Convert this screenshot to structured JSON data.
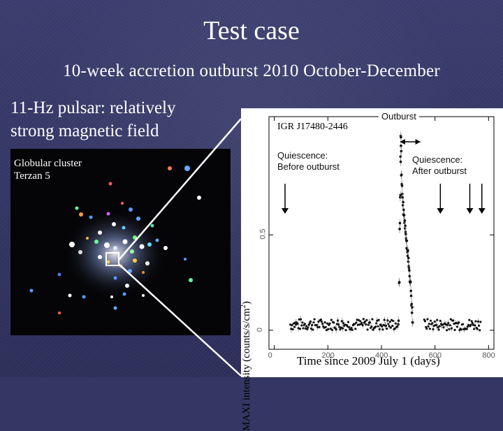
{
  "slide": {
    "title": "Test case",
    "subtitle": "10-week accretion outburst 2010 October-December",
    "pulsar_line1": "11-Hz pulsar: relatively",
    "pulsar_line2": "strong magnetic field"
  },
  "cluster_image": {
    "label_line1": "Globular cluster",
    "label_line2": "Terzan 5"
  },
  "chart_data": {
    "type": "scatter",
    "title": "IGR J17480-2446",
    "xlabel": "Time since 2009 July 1 (days)",
    "ylabel_main": "MAXI intensity (counts/s/cm",
    "ylabel_sup": "2",
    "ylabel_close": ")",
    "xlim": [
      -20,
      820
    ],
    "ylim": [
      -0.1,
      1.12
    ],
    "x_ticks": [
      "0",
      "200",
      "400",
      "600",
      "800"
    ],
    "y_ticks": [
      "0",
      "0.5"
    ],
    "x_tick_values": [
      0,
      200,
      400,
      600,
      800
    ],
    "y_tick_values": [
      0,
      0.5
    ],
    "annotations": {
      "outburst": "Outburst",
      "before_line1": "Quiescence:",
      "before_line2": "Before outburst",
      "after_line1": "Quiescence:",
      "after_line2": "After outburst"
    },
    "before_arrow_x": 40,
    "after_arrow_x": [
      620,
      730,
      775
    ],
    "outburst_span": [
      470,
      545
    ],
    "quiescent_level": 0.03,
    "quiescent_ranges": [
      [
        60,
        460
      ],
      [
        560,
        770
      ]
    ],
    "outburst_points": [
      [
        463,
        0.05
      ],
      [
        466,
        0.25
      ],
      [
        468,
        0.55
      ],
      [
        470,
        0.7
      ],
      [
        471,
        0.9
      ],
      [
        472,
        1.0
      ],
      [
        473,
        0.95
      ],
      [
        474,
        0.82
      ],
      [
        476,
        0.75
      ],
      [
        478,
        0.7
      ],
      [
        480,
        0.66
      ],
      [
        482,
        0.62
      ],
      [
        484,
        0.6
      ],
      [
        486,
        0.57
      ],
      [
        488,
        0.55
      ],
      [
        490,
        0.52
      ],
      [
        492,
        0.48
      ],
      [
        494,
        0.45
      ],
      [
        496,
        0.42
      ],
      [
        498,
        0.4
      ],
      [
        500,
        0.37
      ],
      [
        502,
        0.33
      ],
      [
        504,
        0.3
      ],
      [
        506,
        0.27
      ],
      [
        508,
        0.24
      ],
      [
        510,
        0.2
      ],
      [
        512,
        0.15
      ],
      [
        514,
        0.1
      ],
      [
        516,
        0.06
      ]
    ]
  }
}
